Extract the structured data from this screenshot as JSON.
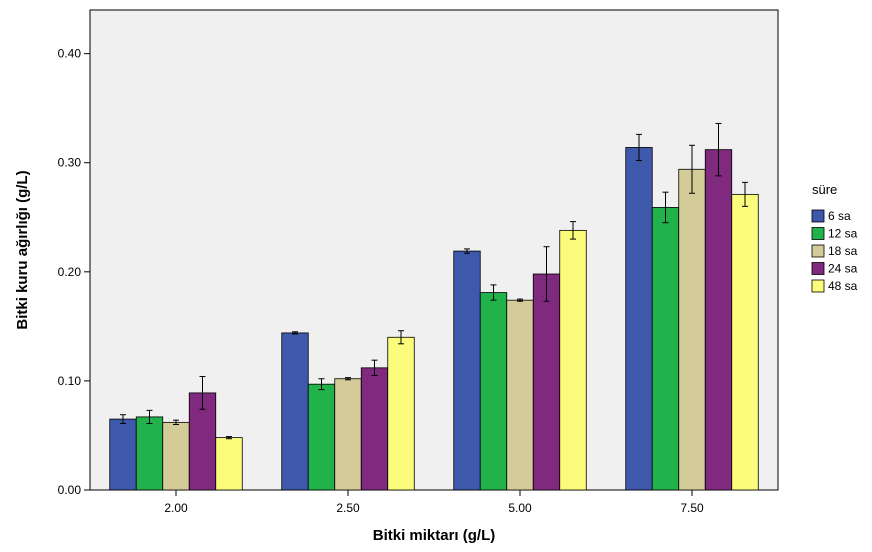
{
  "chart_data": {
    "type": "bar",
    "xlabel": "Bitki miktarı (g/L)",
    "ylabel": "Bitki kuru ağırlığı (g/L)",
    "categories": [
      "2.00",
      "2.50",
      "5.00",
      "7.50"
    ],
    "ylim": [
      0,
      0.44
    ],
    "yticks": [
      "0.00",
      "0.10",
      "0.20",
      "0.30",
      "0.40"
    ],
    "ytick_values": [
      0,
      0.1,
      0.2,
      0.3,
      0.4
    ],
    "grid": false,
    "plot_background": "#f0f0f0",
    "legend": {
      "title": "süre",
      "position": "right"
    },
    "series": [
      {
        "name": "6 sa",
        "color": "#3e58ac",
        "values": [
          0.065,
          0.144,
          0.219,
          0.314
        ],
        "errors": [
          0.004,
          0.001,
          0.002,
          0.012
        ]
      },
      {
        "name": "12 sa",
        "color": "#21b24b",
        "values": [
          0.067,
          0.097,
          0.181,
          0.259
        ],
        "errors": [
          0.006,
          0.005,
          0.007,
          0.014
        ]
      },
      {
        "name": "18 sa",
        "color": "#d4cc98",
        "values": [
          0.062,
          0.102,
          0.174,
          0.294
        ],
        "errors": [
          0.002,
          0.001,
          0.001,
          0.022
        ]
      },
      {
        "name": "24 sa",
        "color": "#7f2a7e",
        "values": [
          0.089,
          0.112,
          0.198,
          0.312
        ],
        "errors": [
          0.015,
          0.007,
          0.025,
          0.024
        ]
      },
      {
        "name": "48 sa",
        "color": "#fcfc7c",
        "values": [
          0.048,
          0.14,
          0.238,
          0.271
        ],
        "errors": [
          0.001,
          0.006,
          0.008,
          0.011
        ]
      }
    ]
  }
}
